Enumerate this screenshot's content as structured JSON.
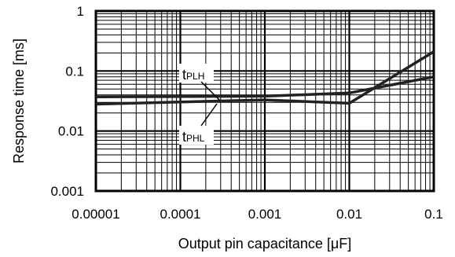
{
  "chart_data": {
    "type": "line",
    "xscale": "log",
    "yscale": "log",
    "xlim": [
      1e-05,
      0.1
    ],
    "ylim": [
      0.001,
      1
    ],
    "grid": true,
    "xlabel": "Output pin capacitance [μF]",
    "ylabel": "Response time [ms]",
    "x_ticks": [
      "0.00001",
      "0.0001",
      "0.001",
      "0.01",
      "0.1"
    ],
    "y_ticks": [
      "1",
      "0.1",
      "0.01",
      "0.001"
    ],
    "series": [
      {
        "name": "tPLH",
        "label_main": "t",
        "label_sub": "PLH",
        "x": [
          1e-05,
          0.001,
          0.01,
          0.1
        ],
        "y": [
          0.037,
          0.038,
          0.043,
          0.08
        ]
      },
      {
        "name": "tPHL",
        "label_main": "t",
        "label_sub": "PHL",
        "x": [
          1e-05,
          0.001,
          0.01,
          0.1
        ],
        "y": [
          0.028,
          0.033,
          0.029,
          0.21
        ]
      }
    ]
  }
}
